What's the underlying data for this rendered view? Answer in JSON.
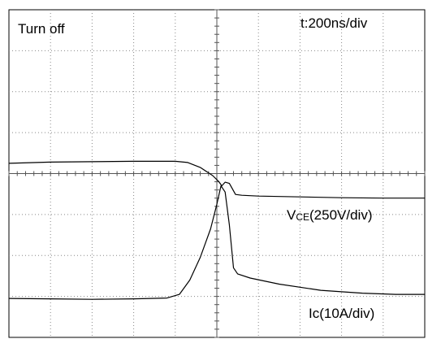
{
  "chart_data": {
    "type": "line",
    "title": "Turn off",
    "time_base": "t:200ns/div",
    "grid": true,
    "divisions": {
      "x": 10,
      "y": 8
    },
    "x_range": [
      0,
      10
    ],
    "y_range": [
      0,
      8
    ],
    "series": [
      {
        "name_main": "V",
        "name_sub": "CE",
        "name_rest": "(250V/div)",
        "color": "#000000",
        "points": [
          [
            0,
            4.25
          ],
          [
            1,
            4.28
          ],
          [
            2,
            4.29
          ],
          [
            3,
            4.3
          ],
          [
            4,
            4.3
          ],
          [
            4.3,
            4.27
          ],
          [
            4.6,
            4.15
          ],
          [
            4.9,
            3.95
          ],
          [
            5.05,
            3.8
          ],
          [
            5.12,
            3.7
          ],
          [
            5.2,
            3.79
          ],
          [
            5.3,
            3.76
          ],
          [
            5.45,
            3.49
          ],
          [
            5.6,
            3.47
          ],
          [
            6,
            3.45
          ],
          [
            7,
            3.43
          ],
          [
            8,
            3.41
          ],
          [
            9,
            3.4
          ],
          [
            10,
            3.4
          ]
        ]
      },
      {
        "name_main": "Ic",
        "name_sub": "",
        "name_rest": "(10A/div)",
        "color": "#000000",
        "points": [
          [
            0,
            0.95
          ],
          [
            1,
            0.94
          ],
          [
            2,
            0.93
          ],
          [
            3,
            0.94
          ],
          [
            3.8,
            0.96
          ],
          [
            4.1,
            1.05
          ],
          [
            4.35,
            1.4
          ],
          [
            4.6,
            1.95
          ],
          [
            4.85,
            2.65
          ],
          [
            5.0,
            3.25
          ],
          [
            5.1,
            3.7
          ],
          [
            5.2,
            3.55
          ],
          [
            5.3,
            2.75
          ],
          [
            5.4,
            1.7
          ],
          [
            5.5,
            1.55
          ],
          [
            5.8,
            1.45
          ],
          [
            6.5,
            1.3
          ],
          [
            7.5,
            1.15
          ],
          [
            8.5,
            1.08
          ],
          [
            9.3,
            1.05
          ],
          [
            10,
            1.05
          ]
        ]
      }
    ]
  }
}
